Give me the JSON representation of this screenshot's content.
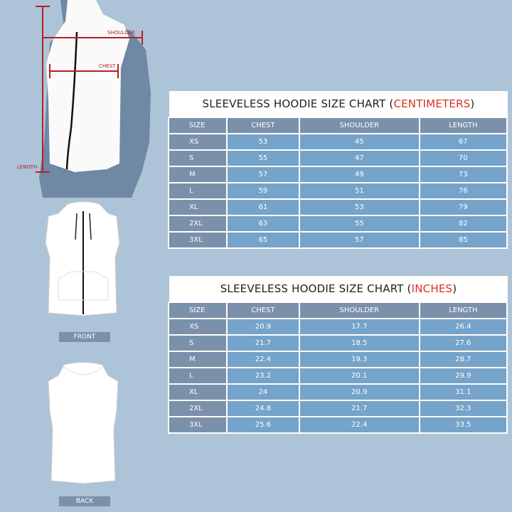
{
  "colors": {
    "background": "#adc3d7",
    "header_cell": "#7b90aa",
    "value_cell": "#75a3c9",
    "unit_accent": "#d8321f",
    "measure_line": "#b3202a"
  },
  "diagram": {
    "shoulder_label": "SHOULDER",
    "chest_label": "CHEST",
    "length_label": "LENGTH",
    "front_label": "FRONT",
    "back_label": "BACK"
  },
  "charts": [
    {
      "title": "SLEEVELESS HOODIE SIZE CHART (",
      "unit": "CENTIMETERS",
      "close": ")",
      "columns": [
        "SIZE",
        "CHEST",
        "SHOULDER",
        "LENGTH"
      ],
      "rows": [
        [
          "XS",
          "53",
          "45",
          "67"
        ],
        [
          "S",
          "55",
          "47",
          "70"
        ],
        [
          "M",
          "57",
          "49",
          "73"
        ],
        [
          "L",
          "59",
          "51",
          "76"
        ],
        [
          "XL",
          "61",
          "53",
          "79"
        ],
        [
          "2XL",
          "63",
          "55",
          "82"
        ],
        [
          "3XL",
          "65",
          "57",
          "85"
        ]
      ]
    },
    {
      "title": "SLEEVELESS HOODIE SIZE CHART (",
      "unit": "INCHES",
      "close": ")",
      "columns": [
        "SIZE",
        "CHEST",
        "SHOULDER",
        "LENGTH"
      ],
      "rows": [
        [
          "XS",
          "20.9",
          "17.7",
          "26.4"
        ],
        [
          "S",
          "21.7",
          "18.5",
          "27.6"
        ],
        [
          "M",
          "22.4",
          "19.3",
          "28.7"
        ],
        [
          "L",
          "23.2",
          "20.1",
          "29.9"
        ],
        [
          "XL",
          "24",
          "20.9",
          "31.1"
        ],
        [
          "2XL",
          "24.8",
          "21.7",
          "32.3"
        ],
        [
          "3XL",
          "25.6",
          "22.4",
          "33.5"
        ]
      ]
    }
  ]
}
